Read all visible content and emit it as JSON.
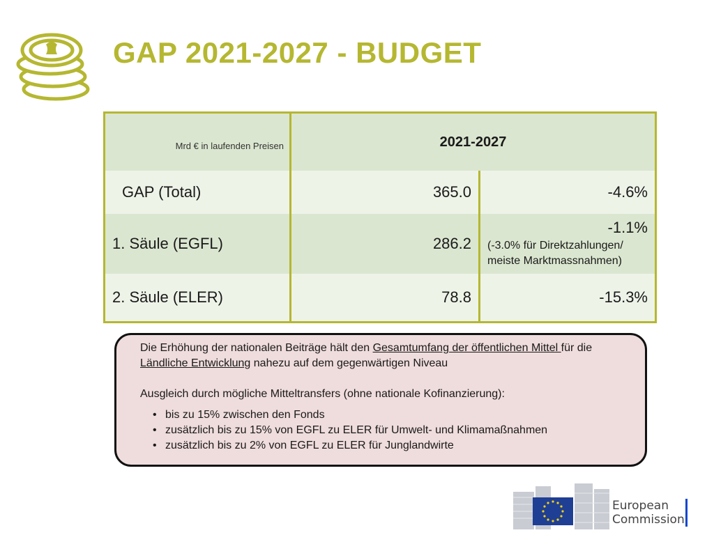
{
  "header": {
    "title": "GAP 2021-2027 - BUDGET"
  },
  "table": {
    "unit_label": "Mrd € in laufenden Preisen",
    "period": "2021-2027",
    "rows": [
      {
        "label": "GAP (Total)",
        "value": "365.0",
        "change": "-4.6%",
        "note": ""
      },
      {
        "label": "1. Säule (EGFL)",
        "value": "286.2",
        "change": "-1.1%",
        "note": "(-3.0% für Direktzahlungen/ meiste Marktmassnahmen)"
      },
      {
        "label": "2. Säule (ELER)",
        "value": "78.8",
        "change": "-15.3%",
        "note": ""
      }
    ]
  },
  "note_box": {
    "p1_a": "Die Erhöhung der nationalen Beiträge hält den ",
    "p1_link1": "Gesamtumfang der öffentlichen Mittel ",
    "p1_b": "für die ",
    "p1_link2": "Ländliche Entwicklung",
    "p1_c": " nahezu auf dem gegenwärtigen Niveau",
    "p2": "Ausgleich durch mögliche Mitteltransfers (ohne nationale Kofinanzierung):",
    "bullets": [
      "bis zu 15% zwischen den Fonds",
      "zusätzlich bis zu 15% von EGFL zu ELER für Umwelt- und Klimamaßnahmen",
      "zusätzlich bis zu 2% von EGFL zu ELER für Junglandwirte"
    ]
  },
  "footer": {
    "logo_line1": "European",
    "logo_line2": "Commission"
  },
  "colors": {
    "accent": "#b5b731",
    "table_header_bg": "#dbe6d0",
    "table_row_light": "#eef3e8",
    "note_bg": "#efdcdc",
    "eu_blue": "#0e47cb"
  },
  "icons": [
    "coins-icon",
    "eu-flag-icon"
  ]
}
